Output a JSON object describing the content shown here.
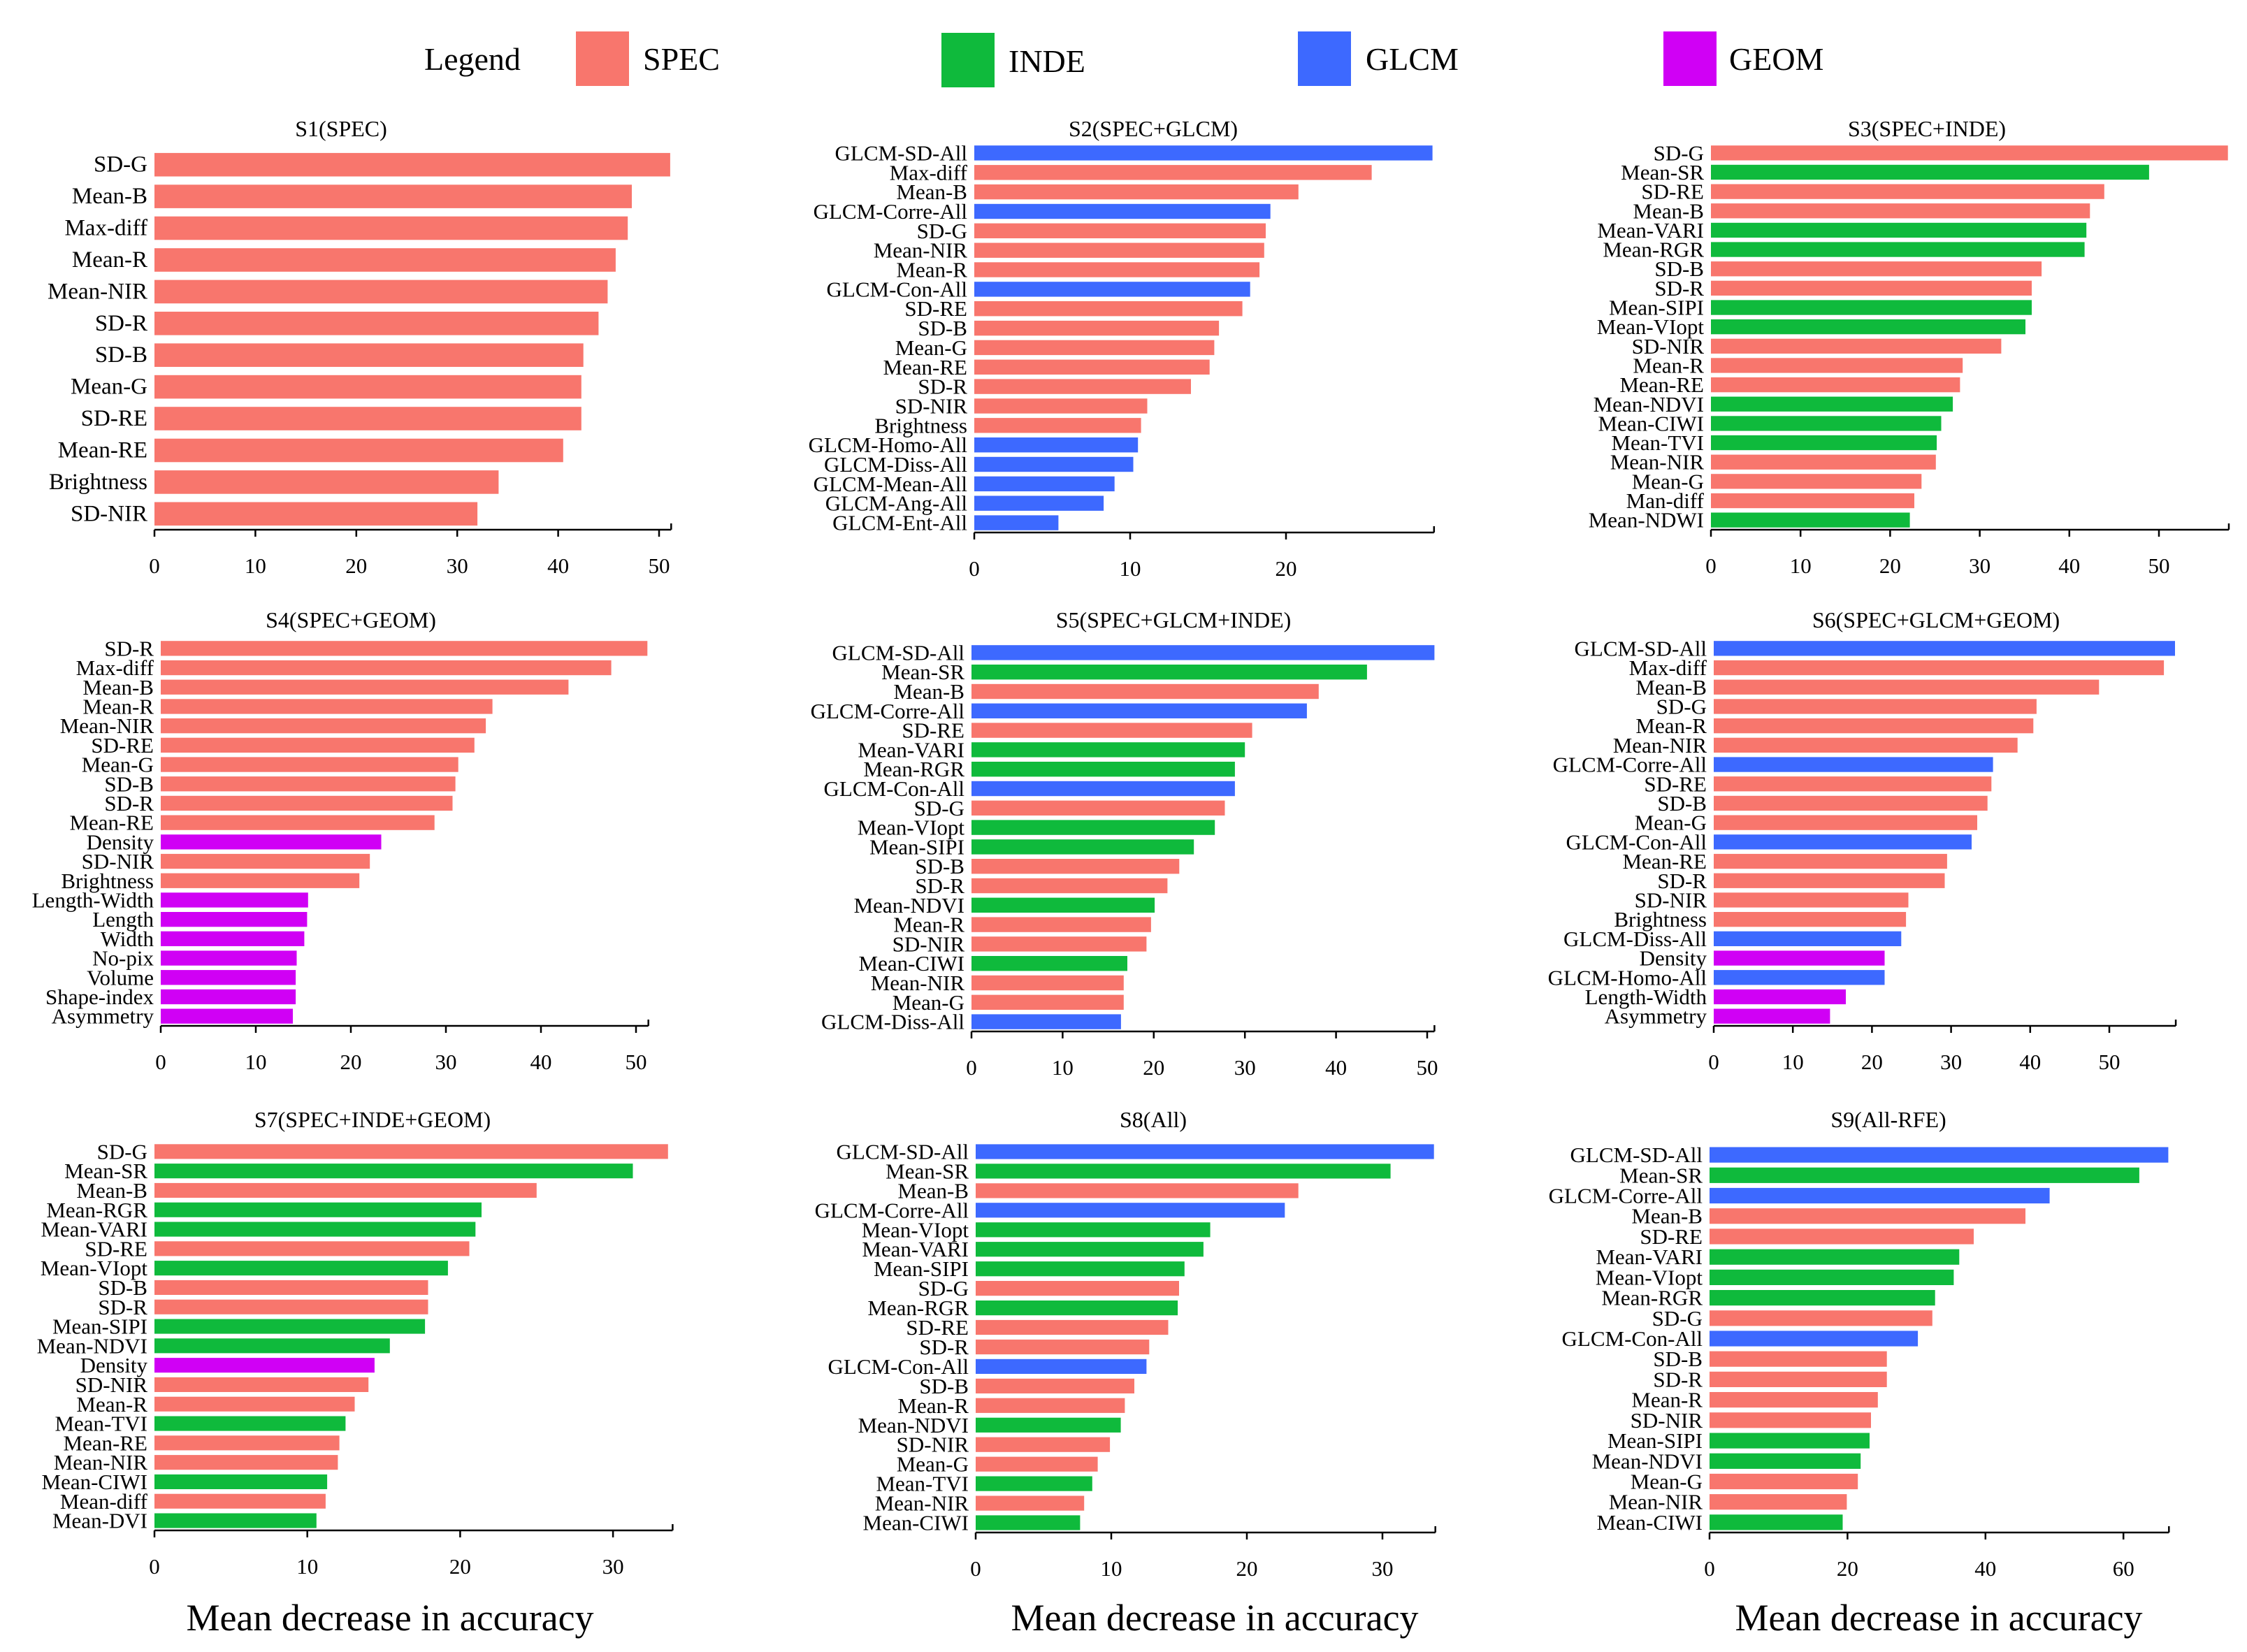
{
  "legend": {
    "title": "Legend",
    "entries": [
      {
        "name": "SPEC",
        "color": "#F8766D"
      },
      {
        "name": "INDE",
        "color": "#0FBA3C"
      },
      {
        "name": "GLCM",
        "color": "#3D69FF"
      },
      {
        "name": "GEOM",
        "color": "#D000F5"
      }
    ]
  },
  "chart_data": [
    {
      "type": "bar",
      "orientation": "horizontal",
      "title": "S1(SPEC)",
      "categories": [
        "SD-G",
        "Mean-B",
        "Max-diff",
        "Mean-R",
        "Mean-NIR",
        "SD-R",
        "SD-B",
        "Mean-G",
        "SD-RE",
        "Mean-RE",
        "Brightness",
        "SD-NIR"
      ],
      "values": [
        51.1,
        47.3,
        46.9,
        45.7,
        44.9,
        44.0,
        42.5,
        42.3,
        42.3,
        40.5,
        34.1,
        32.0
      ],
      "groups": [
        0,
        0,
        0,
        0,
        0,
        0,
        0,
        0,
        0,
        0,
        0,
        0
      ],
      "xlabel": "",
      "xlim": [
        0,
        51.2
      ],
      "xticks": [
        0,
        10,
        20,
        30,
        40,
        50
      ]
    },
    {
      "type": "bar",
      "orientation": "horizontal",
      "title": "S2(SPEC+GLCM)",
      "categories": [
        "GLCM-SD-All",
        "Max-diff",
        "Mean-B",
        "GLCM-Corre-All",
        "SD-G",
        "Mean-NIR",
        "Mean-R",
        "GLCM-Con-All",
        "SD-RE",
        "SD-B",
        "Mean-G",
        "Mean-RE",
        "SD-R",
        "SD-NIR",
        "Brightness",
        "GLCM-Homo-All",
        "GLCM-Diss-All",
        "GLCM-Mean-All",
        "GLCM-Ang-All",
        "GLCM-Ent-All"
      ],
      "values": [
        29.4,
        25.5,
        20.8,
        19.0,
        18.7,
        18.6,
        18.3,
        17.7,
        17.2,
        15.7,
        15.4,
        15.1,
        13.9,
        11.1,
        10.7,
        10.5,
        10.2,
        9.0,
        8.3,
        5.4
      ],
      "groups": [
        2,
        0,
        0,
        2,
        0,
        0,
        0,
        2,
        0,
        0,
        0,
        0,
        0,
        0,
        0,
        2,
        2,
        2,
        2,
        2
      ],
      "xlabel": "",
      "xlim": [
        0,
        29.5
      ],
      "xticks": [
        0,
        10,
        20
      ]
    },
    {
      "type": "bar",
      "orientation": "horizontal",
      "title": "S3(SPEC+INDE)",
      "categories": [
        "SD-G",
        "Mean-SR",
        "SD-RE",
        "Mean-B",
        "Mean-VARI",
        "Mean-RGR",
        "SD-B",
        "SD-R",
        "Mean-SIPI",
        "Mean-VIopt",
        "SD-NIR",
        "Mean-R",
        "Mean-RE",
        "Mean-NDVI",
        "Mean-CIWI",
        "Mean-TVI",
        "Mean-NIR",
        "Mean-G",
        "Man-diff",
        "Mean-NDWI"
      ],
      "values": [
        57.7,
        48.9,
        43.9,
        42.3,
        41.9,
        41.7,
        36.9,
        35.8,
        35.8,
        35.1,
        32.4,
        28.1,
        27.8,
        27.0,
        25.7,
        25.2,
        25.1,
        23.5,
        22.7,
        22.2
      ],
      "groups": [
        0,
        1,
        0,
        0,
        1,
        1,
        0,
        0,
        1,
        1,
        0,
        0,
        0,
        1,
        1,
        1,
        0,
        0,
        0,
        1
      ],
      "xlabel": "",
      "xlim": [
        0,
        57.8
      ],
      "xticks": [
        0,
        10,
        20,
        30,
        40,
        50
      ]
    },
    {
      "type": "bar",
      "orientation": "horizontal",
      "title": "S4(SPEC+GEOM)",
      "categories": [
        "SD-R",
        "Max-diff",
        "Mean-B",
        "Mean-R",
        "Mean-NIR",
        "SD-RE",
        "Mean-G",
        "SD-B",
        "SD-R",
        "Mean-RE",
        "Density",
        "SD-NIR",
        "Brightness",
        "Length-Width",
        "Length",
        "Width",
        "No-pix",
        "Volume",
        "Shape-index",
        "Asymmetry"
      ],
      "values": [
        51.2,
        47.4,
        42.9,
        34.9,
        34.2,
        33.0,
        31.3,
        31.0,
        30.7,
        28.8,
        23.2,
        22.0,
        20.9,
        15.5,
        15.4,
        15.1,
        14.3,
        14.2,
        14.2,
        13.9
      ],
      "groups": [
        0,
        0,
        0,
        0,
        0,
        0,
        0,
        0,
        0,
        0,
        3,
        0,
        0,
        3,
        3,
        3,
        3,
        3,
        3,
        3
      ],
      "xlabel": "",
      "xlim": [
        0,
        51.3
      ],
      "xticks": [
        0,
        10,
        20,
        30,
        40,
        50
      ]
    },
    {
      "type": "bar",
      "orientation": "horizontal",
      "title": "S5(SPEC+GLCM+INDE)",
      "categories": [
        "GLCM-SD-All",
        "Mean-SR",
        "Mean-B",
        "GLCM-Corre-All",
        "SD-RE",
        "Mean-VARI",
        "Mean-RGR",
        "GLCM-Con-All",
        "SD-G",
        "Mean-VIopt",
        "Mean-SIPI",
        "SD-B",
        "SD-R",
        "Mean-NDVI",
        "Mean-R",
        "SD-NIR",
        "Mean-CIWI",
        "Mean-NIR",
        "Mean-G",
        "GLCM-Diss-All"
      ],
      "values": [
        50.8,
        43.4,
        38.1,
        36.8,
        30.8,
        30.0,
        28.9,
        28.9,
        27.8,
        26.7,
        24.4,
        22.8,
        21.5,
        20.1,
        19.7,
        19.2,
        17.1,
        16.7,
        16.7,
        16.4
      ],
      "groups": [
        2,
        1,
        0,
        2,
        0,
        1,
        1,
        2,
        0,
        1,
        1,
        0,
        0,
        1,
        0,
        0,
        1,
        0,
        0,
        2
      ],
      "xlabel": "",
      "xlim": [
        0,
        50.8
      ],
      "xticks": [
        0,
        10,
        20,
        30,
        40,
        50
      ]
    },
    {
      "type": "bar",
      "orientation": "horizontal",
      "title": "S6(SPEC+GLCM+GEOM)",
      "categories": [
        "GLCM-SD-All",
        "Max-diff",
        "Mean-B",
        "SD-G",
        "Mean-R",
        "Mean-NIR",
        "GLCM-Corre-All",
        "SD-RE",
        "SD-B",
        "Mean-G",
        "GLCM-Con-All",
        "Mean-RE",
        "SD-R",
        "SD-NIR",
        "Brightness",
        "GLCM-Diss-All",
        "Density",
        "GLCM-Homo-All",
        "Length-Width",
        "Asymmetry"
      ],
      "values": [
        58.3,
        56.9,
        48.7,
        40.8,
        40.4,
        38.4,
        35.3,
        35.1,
        34.6,
        33.3,
        32.6,
        29.5,
        29.2,
        24.6,
        24.3,
        23.7,
        21.6,
        21.6,
        16.7,
        14.7
      ],
      "groups": [
        2,
        0,
        0,
        0,
        0,
        0,
        2,
        0,
        0,
        0,
        2,
        0,
        0,
        0,
        0,
        2,
        3,
        2,
        3,
        3
      ],
      "xlabel": "",
      "xlim": [
        0,
        58.4
      ],
      "xticks": [
        0,
        10,
        20,
        30,
        40,
        50
      ]
    },
    {
      "type": "bar",
      "orientation": "horizontal",
      "title": "S7(SPEC+INDE+GEOM)",
      "categories": [
        "SD-G",
        "Mean-SR",
        "Mean-B",
        "Mean-RGR",
        "Mean-VARI",
        "SD-RE",
        "Mean-VIopt",
        "SD-B",
        "SD-R",
        "Mean-SIPI",
        "Mean-NDVI",
        "Density",
        "SD-NIR",
        "Mean-R",
        "Mean-TVI",
        "Mean-RE",
        "Mean-NIR",
        "Mean-CIWI",
        "Mean-diff",
        "Mean-DVI"
      ],
      "values": [
        33.6,
        31.3,
        25.0,
        21.4,
        21.0,
        20.6,
        19.2,
        17.9,
        17.9,
        17.7,
        15.4,
        14.4,
        14.0,
        13.1,
        12.5,
        12.1,
        12.0,
        11.3,
        11.2,
        10.6
      ],
      "groups": [
        0,
        1,
        0,
        1,
        1,
        0,
        1,
        0,
        0,
        1,
        1,
        3,
        0,
        0,
        1,
        0,
        0,
        1,
        0,
        1
      ],
      "xlabel": "Mean decrease in accuracy",
      "xlim": [
        0,
        33.9
      ],
      "xticks": [
        0,
        10,
        20,
        30
      ]
    },
    {
      "type": "bar",
      "orientation": "horizontal",
      "title": "S8(All)",
      "categories": [
        "GLCM-SD-All",
        "Mean-SR",
        "Mean-B",
        "GLCM-Corre-All",
        "Mean-VIopt",
        "Mean-VARI",
        "Mean-SIPI",
        "SD-G",
        "Mean-RGR",
        "SD-RE",
        "SD-R",
        "GLCM-Con-All",
        "SD-B",
        "Mean-R",
        "Mean-NDVI",
        "SD-NIR",
        "Mean-G",
        "Mean-TVI",
        "Mean-NIR",
        "Mean-CIWI"
      ],
      "values": [
        33.8,
        30.6,
        23.8,
        22.8,
        17.3,
        16.8,
        15.4,
        15.0,
        14.9,
        14.2,
        12.8,
        12.6,
        11.7,
        11.0,
        10.7,
        9.9,
        9.0,
        8.6,
        8.0,
        7.7
      ],
      "groups": [
        2,
        1,
        0,
        2,
        1,
        1,
        1,
        0,
        1,
        0,
        0,
        2,
        0,
        0,
        1,
        0,
        0,
        1,
        0,
        1
      ],
      "xlabel": "Mean decrease in accuracy",
      "xlim": [
        0,
        33.9
      ],
      "xticks": [
        0,
        10,
        20,
        30
      ]
    },
    {
      "type": "bar",
      "orientation": "horizontal",
      "title": "S9(All-RFE)",
      "categories": [
        "GLCM-SD-All",
        "Mean-SR",
        "GLCM-Corre-All",
        "Mean-B",
        "SD-RE",
        "Mean-VARI",
        "Mean-VIopt",
        "Mean-RGR",
        "SD-G",
        "GLCM-Con-All",
        "SD-B",
        "SD-R",
        "Mean-R",
        "SD-NIR",
        "Mean-SIPI",
        "Mean-NDVI",
        "Mean-G",
        "Mean-NIR",
        "Mean-CIWI"
      ],
      "values": [
        66.5,
        62.3,
        49.3,
        45.8,
        38.3,
        36.2,
        35.4,
        32.7,
        32.3,
        30.2,
        25.7,
        25.7,
        24.4,
        23.4,
        23.2,
        21.9,
        21.5,
        19.9,
        19.3
      ],
      "groups": [
        2,
        1,
        2,
        0,
        0,
        1,
        1,
        1,
        0,
        2,
        0,
        0,
        0,
        0,
        1,
        1,
        0,
        0,
        1
      ],
      "xlabel": "Mean decrease in accuracy",
      "xlim": [
        0,
        66.6
      ],
      "xticks": [
        0,
        20,
        40,
        60
      ]
    }
  ]
}
